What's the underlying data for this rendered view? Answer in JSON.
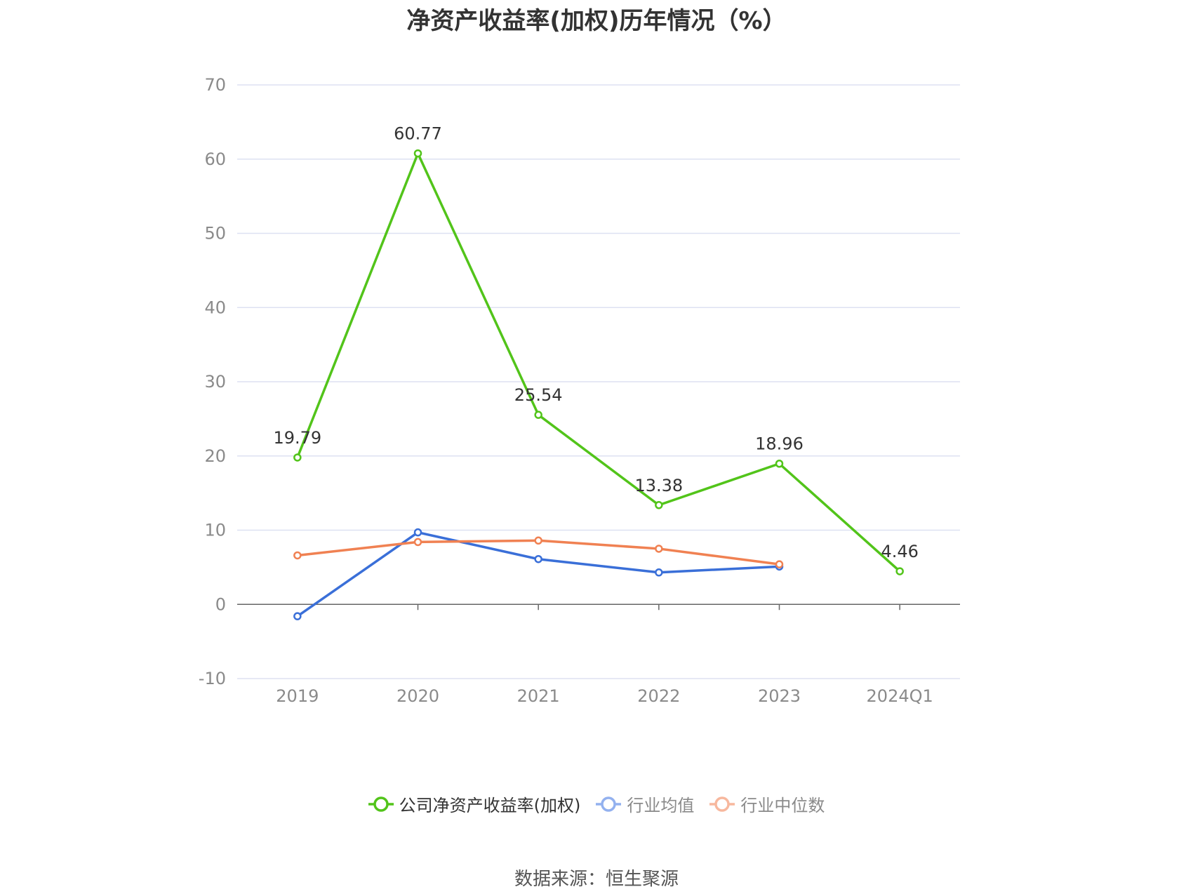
{
  "title": "净资产收益率(加权)历年情况（%）",
  "source": "数据来源：恒生聚源",
  "colors": {
    "grid": "#dde1f2",
    "axis": "#666666"
  },
  "chart_data": {
    "type": "line",
    "title": "净资产收益率(加权)历年情况（%）",
    "categories": [
      "2019",
      "2020",
      "2021",
      "2022",
      "2023",
      "2024Q1"
    ],
    "ylim": [
      -10,
      70
    ],
    "yticks": [
      70,
      60,
      50,
      40,
      30,
      20,
      10,
      0,
      -10
    ],
    "grid": true,
    "legend_position": "bottom",
    "series": [
      {
        "name": "公司净资产收益率(加权)",
        "color": "#52c41a",
        "show_labels": true,
        "values": [
          19.79,
          60.77,
          25.54,
          13.38,
          18.96,
          4.46
        ],
        "labels": [
          "19.79",
          "60.77",
          "25.54",
          "13.38",
          "18.96",
          "4.46"
        ]
      },
      {
        "name": "行业均值",
        "color": "#3a6fd8",
        "legend_color": "#93b1ef",
        "show_labels": false,
        "values": [
          -1.6,
          9.7,
          6.1,
          4.3,
          5.1,
          null
        ]
      },
      {
        "name": "行业中位数",
        "color": "#f08152",
        "legend_color": "#f7b89e",
        "show_labels": false,
        "values": [
          6.6,
          8.4,
          8.6,
          7.5,
          5.4,
          null
        ]
      }
    ]
  }
}
